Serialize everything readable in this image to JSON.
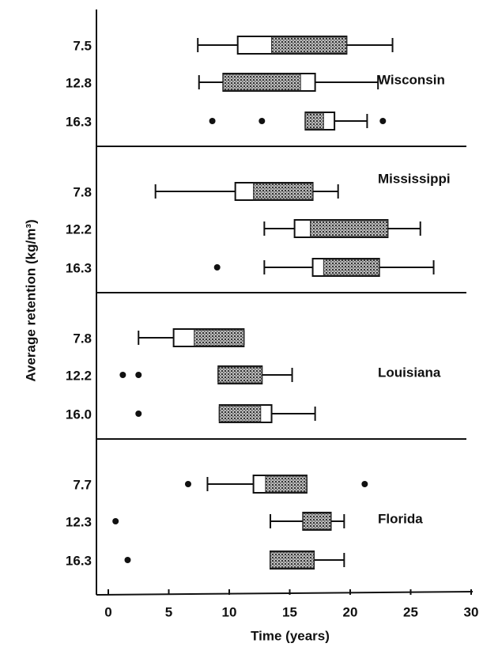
{
  "chart_data": {
    "type": "box",
    "xlabel": "Time (years)",
    "ylabel": "Average retention (kg/m³)",
    "xlim": [
      0,
      30
    ],
    "xticks": [
      0,
      5,
      10,
      15,
      20,
      25,
      30
    ],
    "groups": [
      {
        "name": "Wisconsin",
        "categories": [
          "7.5",
          "12.8",
          "16.3"
        ],
        "boxes": [
          {
            "whislo": 7.4,
            "q1": 10.7,
            "shade_lo": 13.5,
            "shade_hi": 19.7,
            "q3": 19.7,
            "whishi": 23.5,
            "fliers": []
          },
          {
            "whislo": 7.5,
            "q1": 9.5,
            "shade_lo": 9.5,
            "shade_hi": 15.9,
            "q3": 17.1,
            "whishi": 22.3,
            "fliers": []
          },
          {
            "whislo": 16.3,
            "q1": 16.3,
            "shade_lo": 16.3,
            "shade_hi": 17.8,
            "q3": 18.7,
            "whishi": 21.4,
            "fliers": [
              8.6,
              12.7,
              22.7
            ]
          }
        ]
      },
      {
        "name": "Mississippi",
        "categories": [
          "7.8",
          "12.2",
          "16.3"
        ],
        "boxes": [
          {
            "whislo": 3.9,
            "q1": 10.5,
            "shade_lo": 12.0,
            "shade_hi": 16.9,
            "q3": 16.9,
            "whishi": 19.0,
            "fliers": []
          },
          {
            "whislo": 12.9,
            "q1": 15.4,
            "shade_lo": 16.7,
            "shade_hi": 23.1,
            "q3": 23.1,
            "whishi": 25.8,
            "fliers": []
          },
          {
            "whislo": 12.9,
            "q1": 16.9,
            "shade_lo": 17.8,
            "shade_hi": 22.4,
            "q3": 22.4,
            "whishi": 26.9,
            "fliers": [
              9.0
            ]
          }
        ]
      },
      {
        "name": "Louisiana",
        "categories": [
          "7.8",
          "12.2",
          "16.0"
        ],
        "boxes": [
          {
            "whislo": 2.5,
            "q1": 5.4,
            "shade_lo": 7.1,
            "shade_hi": 11.2,
            "q3": 11.2,
            "whishi": 11.2,
            "fliers": []
          },
          {
            "whislo": 9.1,
            "q1": 9.1,
            "shade_lo": 9.1,
            "shade_hi": 12.7,
            "q3": 12.7,
            "whishi": 15.2,
            "fliers": [
              1.2,
              2.5
            ]
          },
          {
            "whislo": 9.2,
            "q1": 9.2,
            "shade_lo": 9.2,
            "shade_hi": 12.6,
            "q3": 13.5,
            "whishi": 17.1,
            "fliers": [
              2.5
            ]
          }
        ]
      },
      {
        "name": "Florida",
        "categories": [
          "7.7",
          "12.3",
          "16.3"
        ],
        "boxes": [
          {
            "whislo": 8.2,
            "q1": 12.0,
            "shade_lo": 13.0,
            "shade_hi": 16.4,
            "q3": 16.4,
            "whishi": 16.4,
            "fliers": [
              6.6,
              21.2
            ]
          },
          {
            "whislo": 13.4,
            "q1": 16.1,
            "shade_lo": 16.1,
            "shade_hi": 18.4,
            "q3": 18.4,
            "whishi": 19.5,
            "fliers": [
              0.6
            ]
          },
          {
            "whislo": 13.4,
            "q1": 13.4,
            "shade_lo": 13.4,
            "shade_hi": 17.0,
            "q3": 17.0,
            "whishi": 19.5,
            "fliers": [
              1.6
            ]
          }
        ]
      }
    ]
  }
}
